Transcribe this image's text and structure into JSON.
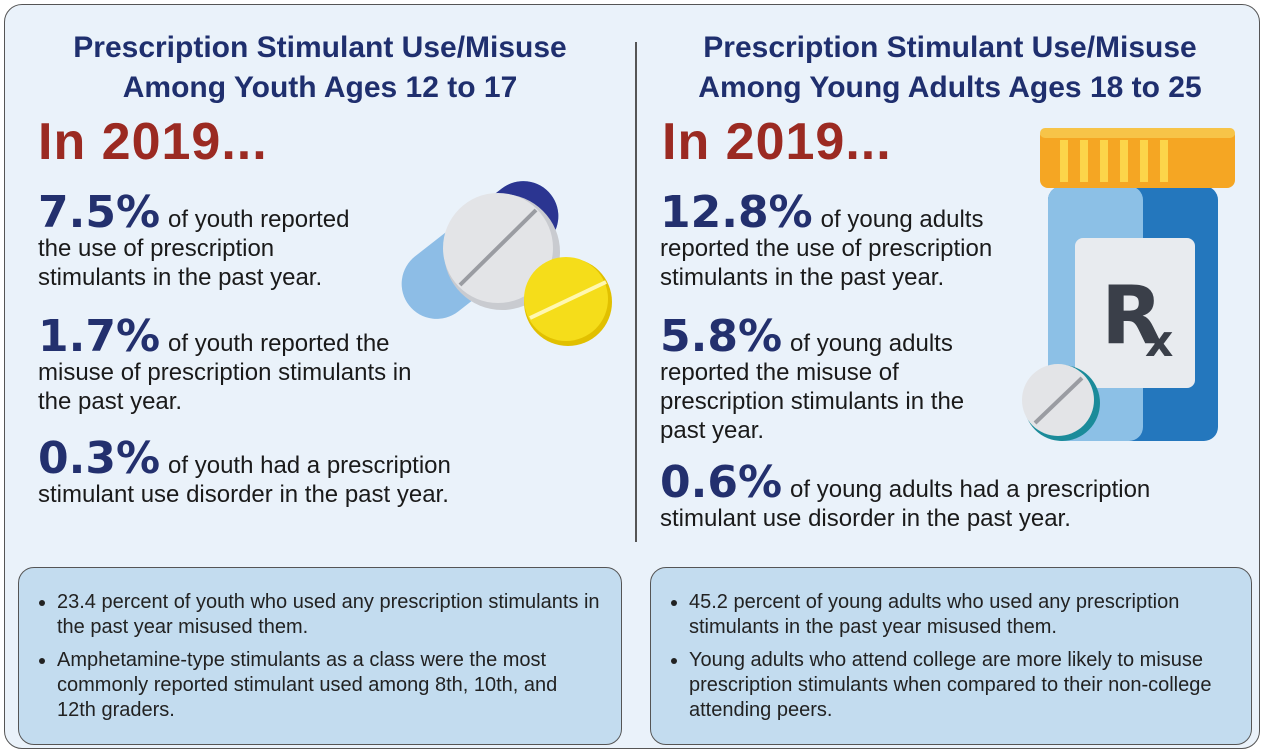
{
  "left": {
    "title": [
      "Prescription Stimulant Use/Misuse",
      "Among Youth Ages 12 to 17"
    ],
    "year": "In 2019...",
    "stats": [
      {
        "value": "7.5%",
        "text": "of youth reported the use of prescription stimulants in the past year."
      },
      {
        "value": "1.7%",
        "text": "of youth reported the misuse of prescription stimulants in the past year."
      },
      {
        "value": "0.3%",
        "text": "of youth had a prescription stimulant use disorder in the past year."
      }
    ],
    "notes": [
      "23.4 percent of youth who used any prescription stimulants in the past year misused them.",
      "Amphetamine-type stimulants as a class were the most commonly reported stimulant used among 8th, 10th, and 12th graders."
    ]
  },
  "right": {
    "title": [
      "Prescription Stimulant Use/Misuse",
      "Among Young Adults Ages 18 to 25"
    ],
    "year": "In 2019...",
    "stats": [
      {
        "value": "12.8%",
        "text": "of young adults reported the use of prescription stimulants in the past year."
      },
      {
        "value": "5.8%",
        "text": "of young adults reported the misuse of prescription stimulants in the past year."
      },
      {
        "value": "0.6%",
        "text": "of young adults had a prescription stimulant use disorder in the past year."
      }
    ],
    "notes": [
      "45.2 percent of young adults who used any prescription stimulants in the past year misused them.",
      "Young adults who attend college are more likely to misuse prescription stimulants when compared to their non-college attending peers."
    ]
  }
}
